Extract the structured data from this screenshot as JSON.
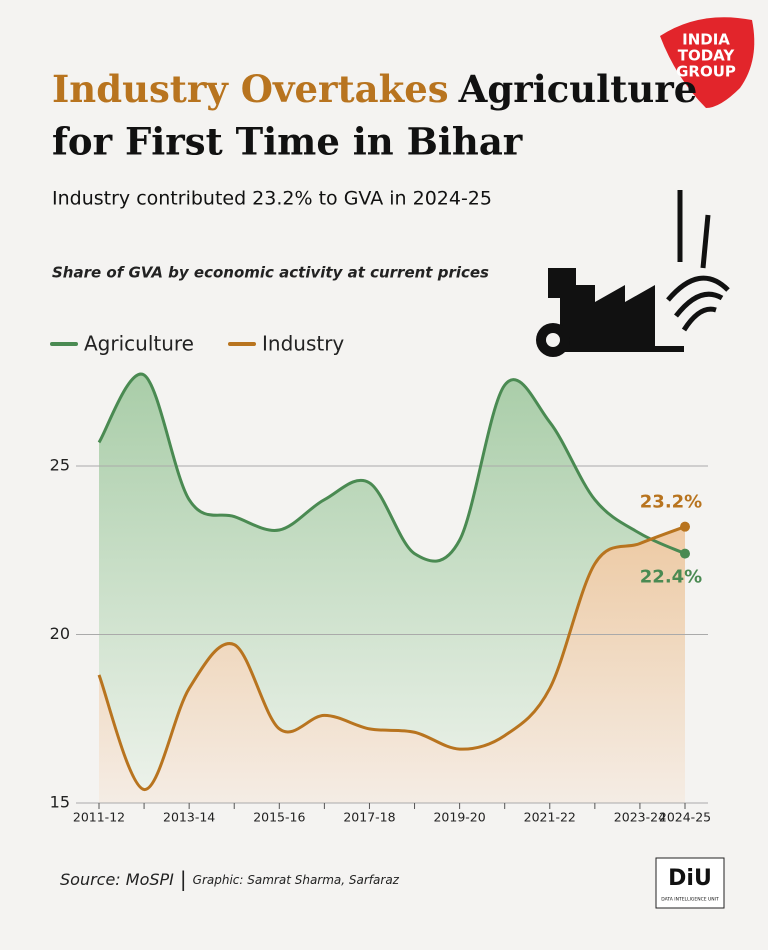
{
  "header": {
    "title_highlight": "Industry Overtakes",
    "title_rest_line1": "Agriculture",
    "title_line2": "for First Time in Bihar",
    "subtitle": "Industry contributed 23.2% to GVA in 2024-25",
    "logo_lines": [
      "INDIA",
      "TODAY",
      "GROUP"
    ]
  },
  "chart_data": {
    "type": "line",
    "note": "Share of GVA by economic activity at current prices",
    "categories": [
      "2011-12",
      null,
      "2013-14",
      null,
      "2015-16",
      null,
      "2017-18",
      null,
      "2019-20",
      null,
      "2021-22",
      null,
      "2023-24",
      "2024-25"
    ],
    "series": [
      {
        "name": "Agriculture",
        "color": "#4a8a52",
        "values": [
          25.7,
          27.7,
          24.0,
          23.5,
          23.1,
          24.0,
          24.5,
          22.4,
          22.8,
          27.4,
          26.3,
          24.0,
          23.0,
          22.4
        ],
        "value_labels": [
          null,
          null,
          null,
          null,
          null,
          null,
          null,
          null,
          null,
          null,
          null,
          null,
          null,
          "22.4%"
        ]
      },
      {
        "name": "Industry",
        "color": "#b8741f",
        "values": [
          18.8,
          15.4,
          18.4,
          19.7,
          17.2,
          17.6,
          17.2,
          17.1,
          16.6,
          17.0,
          18.4,
          22.1,
          22.7,
          23.2
        ],
        "value_labels": [
          null,
          null,
          null,
          null,
          null,
          null,
          null,
          null,
          null,
          null,
          null,
          null,
          null,
          "23.2%"
        ]
      }
    ],
    "ylim": [
      15,
      28
    ],
    "yticks": [
      15,
      20,
      25
    ],
    "grid": true,
    "area_fill": true,
    "legend": "top-left"
  },
  "footer": {
    "source": "Source: MoSPI",
    "separator": "|",
    "credit": "Graphic: Samrat Sharma, Sarfaraz",
    "badge": "DiU",
    "badge_caption": "DATA INTELLIGENCE UNIT"
  }
}
